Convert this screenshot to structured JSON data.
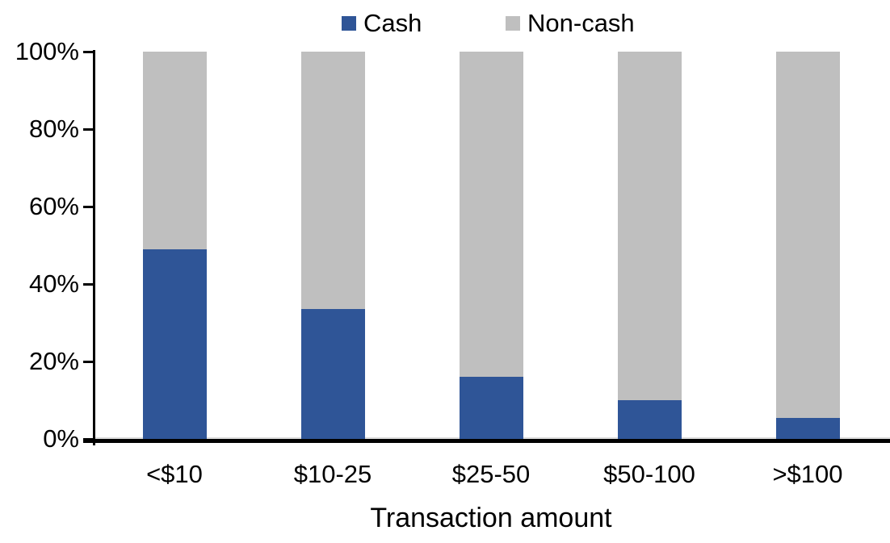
{
  "chart_data": {
    "type": "bar",
    "stacked": true,
    "title": "",
    "xlabel": "Transaction amount",
    "ylabel": "",
    "categories": [
      "<$10",
      "$10-25",
      "$25-50",
      "$50-100",
      ">$100"
    ],
    "series": [
      {
        "name": "Cash",
        "color": "#2F5597",
        "values": [
          49,
          33.5,
          16,
          10,
          5.5
        ]
      },
      {
        "name": "Non-cash",
        "color": "#BFBFBF",
        "values": [
          51,
          66.5,
          84,
          90,
          94.5
        ]
      }
    ],
    "ylim": [
      0,
      100
    ],
    "yticks": [
      {
        "value": 0,
        "label": "0%"
      },
      {
        "value": 20,
        "label": "20%"
      },
      {
        "value": 40,
        "label": "40%"
      },
      {
        "value": 60,
        "label": "60%"
      },
      {
        "value": 80,
        "label": "80%"
      },
      {
        "value": 100,
        "label": "100%"
      }
    ],
    "legend_position": "top",
    "grid": false,
    "axis_color": "#000000",
    "background_color": "#FFFFFF"
  }
}
